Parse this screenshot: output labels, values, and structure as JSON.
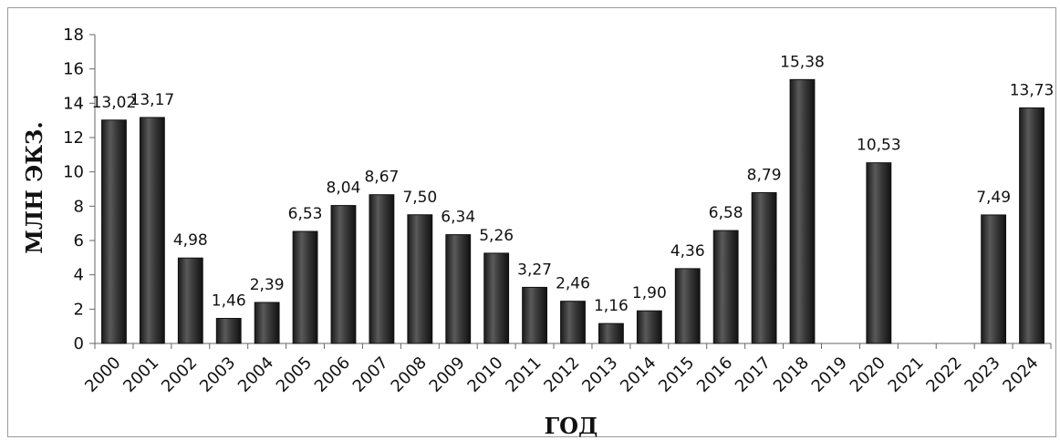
{
  "chart_data": {
    "type": "bar",
    "title": "",
    "xlabel": "ГОД",
    "ylabel": "МЛН ЭКЗ.",
    "ylim": [
      0,
      18
    ],
    "yticks": [
      0,
      2,
      4,
      6,
      8,
      10,
      12,
      14,
      16,
      18
    ],
    "grid": false,
    "legend": "none",
    "bar_color": "#3a3a3a",
    "categories": [
      "2000",
      "2001",
      "2002",
      "2003",
      "2004",
      "2005",
      "2006",
      "2007",
      "2008",
      "2009",
      "2010",
      "2011",
      "2012",
      "2013",
      "2014",
      "2015",
      "2016",
      "2017",
      "2018",
      "2019",
      "2020",
      "2021",
      "2022",
      "2023",
      "2024"
    ],
    "values": [
      13.02,
      13.17,
      4.98,
      1.46,
      2.39,
      6.53,
      8.04,
      8.67,
      7.5,
      6.34,
      5.26,
      3.27,
      2.46,
      1.16,
      1.9,
      4.36,
      6.58,
      8.79,
      15.38,
      null,
      10.53,
      null,
      null,
      7.49,
      13.73
    ],
    "data_labels": [
      "13,02",
      "13,17",
      "4,98",
      "1,46",
      "2,39",
      "6,53",
      "8,04",
      "8,67",
      "7,50",
      "6,34",
      "5,26",
      "3,27",
      "2,46",
      "1,16",
      "1,90",
      "4,36",
      "6,58",
      "8,79",
      "15,38",
      "",
      "10,53",
      "",
      "",
      "7,49",
      "13,73"
    ]
  }
}
